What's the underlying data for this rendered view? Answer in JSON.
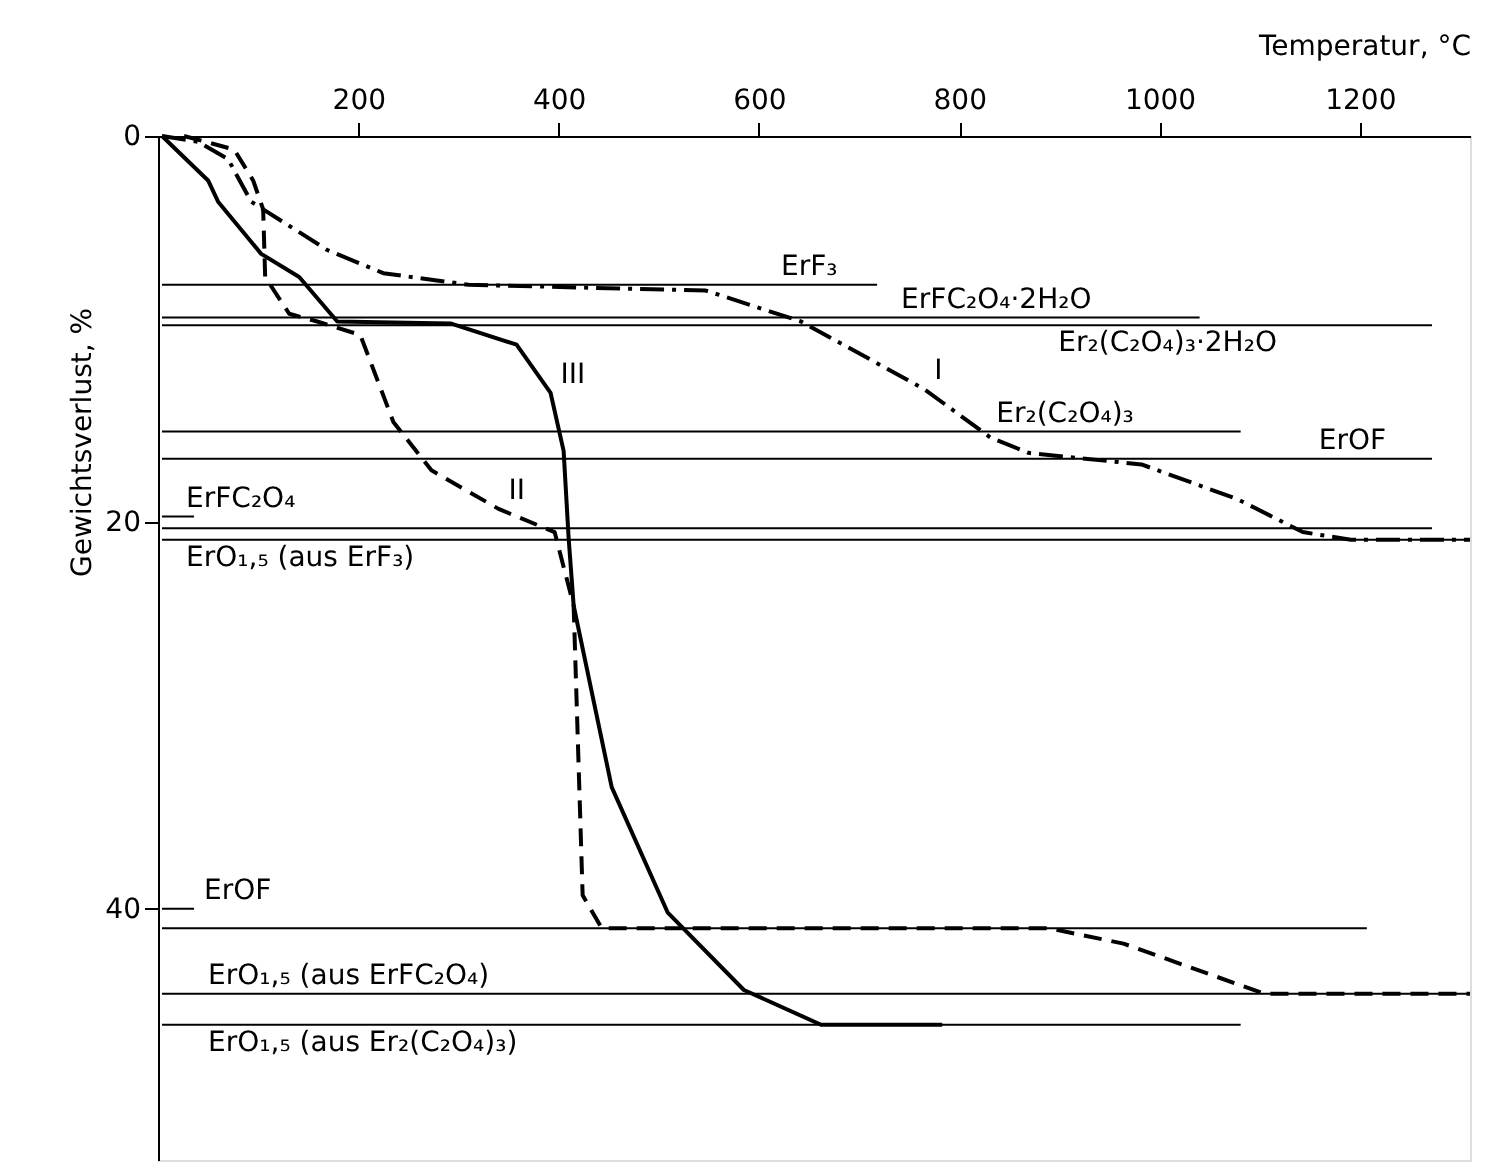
{
  "chart_data": {
    "type": "line",
    "xlabel": "Temperatur, °C",
    "ylabel": "Gewichtsverlust, %",
    "xlim": [
      0,
      1310
    ],
    "xticks": [
      200,
      400,
      600,
      800,
      1000,
      1200
    ],
    "ylim": [
      53,
      0
    ],
    "yticks": [
      0,
      20,
      40
    ],
    "grid": false,
    "series": [
      {
        "color": "#000000",
        "line_style": "dashdot",
        "x": [
          4,
          40,
          70,
          93,
          169,
          225,
          310,
          547,
          642,
          765,
          831,
          869,
          982,
          1078,
          1143,
          1191,
          1310
        ],
        "values": [
          0,
          0.3,
          1.2,
          3.4,
          5.9,
          7.1,
          7.7,
          8.0,
          9.6,
          13.1,
          15.6,
          16.4,
          17.0,
          18.8,
          20.5,
          20.9,
          20.9
        ]
      },
      {
        "color": "#000000",
        "line_style": "dashed",
        "x": [
          26,
          76,
          95,
          105,
          107,
          131,
          159,
          202,
          235,
          273,
          340,
          396,
          415,
          424,
          443,
          889,
          964,
          1105,
          1310
        ],
        "values": [
          0,
          0.7,
          2.3,
          3.8,
          7.3,
          9.2,
          9.6,
          10.3,
          14.8,
          17.3,
          19.3,
          20.5,
          24.3,
          39.3,
          41.0,
          41.0,
          41.8,
          44.4,
          44.4
        ]
      },
      {
        "color": "#000000",
        "line_style": "solid",
        "x": [
          4,
          50,
          60,
          103,
          141,
          179,
          292,
          358,
          392,
          405,
          410,
          415,
          453,
          509,
          585,
          662,
          783
        ],
        "values": [
          0,
          2.3,
          3.4,
          6.1,
          7.3,
          9.6,
          9.7,
          10.8,
          13.3,
          16.3,
          20.8,
          24.3,
          33.7,
          40.2,
          44.2,
          46.0,
          46.0
        ]
      },
      {
        "color": "#000000",
        "line_style": "solid",
        "x": [
          4,
          718
        ],
        "values": [
          7.7,
          7.7
        ]
      },
      {
        "color": "#000000",
        "line_style": "solid",
        "x": [
          4,
          1040
        ],
        "values": [
          9.4,
          9.4
        ]
      },
      {
        "color": "#000000",
        "line_style": "solid",
        "x": [
          4,
          1272
        ],
        "values": [
          9.8,
          9.8
        ]
      },
      {
        "color": "#000000",
        "line_style": "solid",
        "x": [
          4,
          1081
        ],
        "values": [
          15.3,
          15.3
        ]
      },
      {
        "color": "#000000",
        "line_style": "solid",
        "x": [
          4,
          1272
        ],
        "values": [
          16.7,
          16.7
        ]
      },
      {
        "color": "#000000",
        "line_style": "solid",
        "x": [
          4,
          36
        ],
        "values": [
          19.7,
          19.7
        ]
      },
      {
        "color": "#000000",
        "line_style": "solid",
        "x": [
          4,
          1272
        ],
        "values": [
          20.3,
          20.3
        ]
      },
      {
        "color": "#000000",
        "line_style": "solid",
        "x": [
          4,
          1310
        ],
        "values": [
          20.9,
          20.9
        ]
      },
      {
        "color": "#000000",
        "line_style": "solid",
        "x": [
          4,
          36
        ],
        "values": [
          40.0,
          40.0
        ]
      },
      {
        "color": "#000000",
        "line_style": "solid",
        "x": [
          4,
          1207
        ],
        "values": [
          41.0,
          41.0
        ]
      },
      {
        "color": "#000000",
        "line_style": "solid",
        "x": [
          4,
          1310
        ],
        "values": [
          44.4,
          44.4
        ]
      },
      {
        "color": "#000000",
        "line_style": "solid",
        "x": [
          4,
          1081
        ],
        "values": [
          46.0,
          46.0
        ]
      }
    ],
    "annotations": [
      {
        "text": "I",
        "x": 765,
        "y": 13.1
      },
      {
        "text": "II",
        "x": 340,
        "y": 19.3
      },
      {
        "text": "III",
        "x": 392,
        "y": 13.3
      },
      {
        "text": "ErF₃",
        "x": 612,
        "y": 7.7
      },
      {
        "text": "ErFC₂O₄·2H₂O",
        "x": 732,
        "y": 9.4
      },
      {
        "text": "Er₂(C₂O₄)₃·2H₂O",
        "x": 889,
        "y": 9.8
      },
      {
        "text": "Er₂(C₂O₄)₃",
        "x": 827,
        "y": 15.3
      },
      {
        "text": "ErOF",
        "x": 1149,
        "y": 16.7
      },
      {
        "text": "ErFC₂O₄",
        "x": 18,
        "y": 19.7
      },
      {
        "text": "ErO₁,₅ (aus ErF₃)",
        "x": 18,
        "y": 20.9
      },
      {
        "text": "ErOF",
        "x": 36,
        "y": 40.0
      },
      {
        "text": "ErO₁,₅ (aus ErFC₂O₄)",
        "x": 40,
        "y": 44.4
      },
      {
        "text": "ErO₁,₅ (aus Er₂(C₂O₄)₃)",
        "x": 40,
        "y": 46.0
      }
    ]
  }
}
